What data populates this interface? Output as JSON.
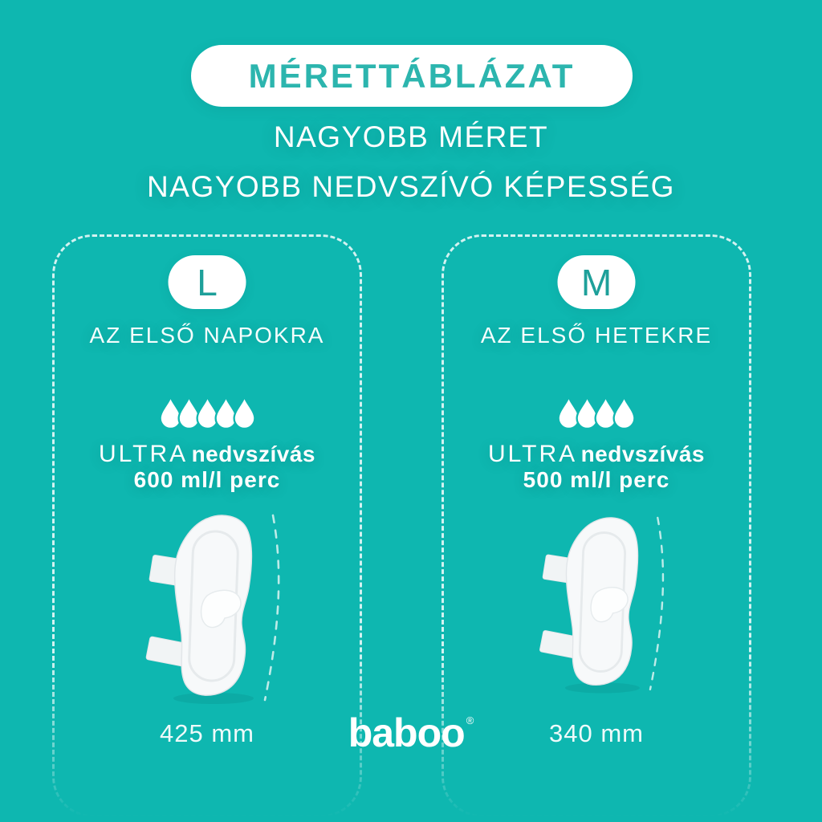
{
  "page": {
    "colors": {
      "background": "#0eb7b0",
      "accent": "#2cb5ae",
      "size_letter": "#1ea09a",
      "text": "#ffffff"
    },
    "icons": {
      "drop": "water-drop-icon",
      "pad": "pad-product-image",
      "measure": "length-measure-dashes"
    }
  },
  "header": {
    "badge": "MÉRETTÁBLÁZAT",
    "subtitle_line1": "NAGYOBB MÉRET",
    "subtitle_line2": "NAGYOBB NEDVSZÍVÓ KÉPESSÉG"
  },
  "panels": [
    {
      "size_letter": "L",
      "usage": "AZ ELSŐ NAPOKRA",
      "drops": 5,
      "absorbency_label": "ULTRA",
      "absorbency_text": "nedvszívás",
      "absorbency_rate": "600 ml/l perc",
      "length": "425 mm"
    },
    {
      "size_letter": "M",
      "usage": "AZ ELSŐ HETEKRE",
      "drops": 4,
      "absorbency_label": "ULTRA",
      "absorbency_text": "nedvszívás",
      "absorbency_rate": "500 ml/l perc",
      "length": "340 mm"
    }
  ],
  "brand": {
    "logo": "baboo",
    "registered_mark": "®"
  }
}
